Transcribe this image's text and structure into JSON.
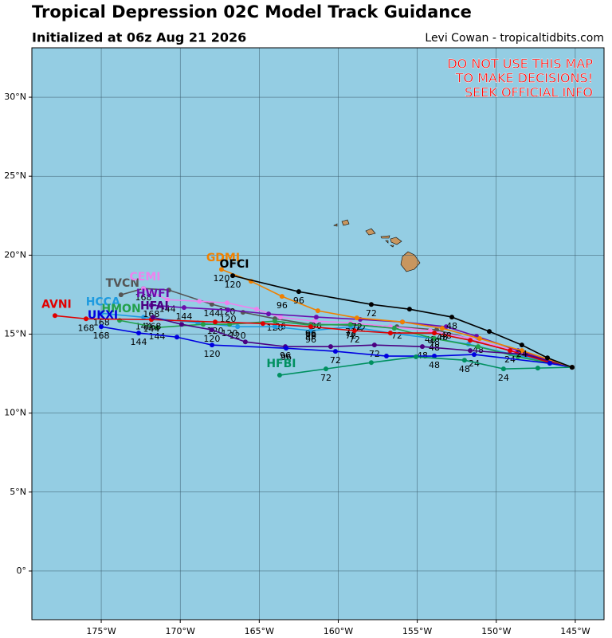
{
  "chart_data": {
    "type": "map",
    "title": "Tropical Depression 02C Model Track Guidance",
    "subtitle": "Initialized at 06z Aug 21 2026",
    "credit": "Levi Cowan - tropicaltidbits.com",
    "warning": [
      "DO NOT USE THIS MAP",
      "TO MAKE DECISIONS!",
      "SEEK OFFICIAL INFO"
    ],
    "ocean_color": "#94cde3",
    "land_color": "#c8965f",
    "grid": true,
    "xlim": [
      -179.39,
      -143.18
    ],
    "ylim": [
      -3.08,
      33.13
    ],
    "xticks": [
      {
        "value": -175,
        "label": "175°W"
      },
      {
        "value": -170,
        "label": "170°W"
      },
      {
        "value": -165,
        "label": "165°W"
      },
      {
        "value": -160,
        "label": "160°W"
      },
      {
        "value": -155,
        "label": "155°W"
      },
      {
        "value": -150,
        "label": "150°W"
      },
      {
        "value": -145,
        "label": "145°W"
      }
    ],
    "yticks": [
      {
        "value": 0,
        "label": "0°"
      },
      {
        "value": 5,
        "label": "5°N"
      },
      {
        "value": 10,
        "label": "10°N"
      },
      {
        "value": 15,
        "label": "15°N"
      },
      {
        "value": 20,
        "label": "20°N"
      },
      {
        "value": 25,
        "label": "25°N"
      },
      {
        "value": 30,
        "label": "30°N"
      }
    ],
    "series": [
      {
        "name": "TVCN",
        "color": "#555555",
        "lon": [
          -145.2,
          -148.38,
          -151.15,
          -153.77,
          -156.29,
          -159.22,
          -161.74,
          -164.01,
          -166.03,
          -168.0,
          -170.72,
          -172.33,
          -173.75
        ],
        "lat": [
          12.9,
          13.71,
          14.56,
          15.27,
          15.47,
          15.57,
          15.62,
          15.98,
          16.38,
          16.89,
          17.79,
          17.89,
          17.49
        ],
        "hours": [
          null,
          null,
          48,
          null,
          72,
          null,
          96,
          120,
          null,
          144,
          null,
          168,
          null
        ]
      },
      {
        "name": "CEMI",
        "color": "#ee82ee",
        "lon": [
          -145.2,
          -148.88,
          -151.65,
          -154.18,
          -156.7,
          -159.22,
          -161.49,
          -163.66,
          -165.17,
          -167.04,
          -168.79,
          -170.81,
          -172.33
        ],
        "lat": [
          12.9,
          13.96,
          14.72,
          15.22,
          15.47,
          15.72,
          15.82,
          16.07,
          16.58,
          16.98,
          17.08,
          17.18,
          17.89
        ],
        "hours": [
          null,
          null,
          null,
          48,
          null,
          72,
          null,
          96,
          null,
          120,
          null,
          144,
          null
        ]
      },
      {
        "name": "HCCA",
        "color": "#1e9be0",
        "lon": [
          -145.2,
          -149.13,
          -151.76,
          -153.92,
          -156.7,
          -159.2,
          -161.74,
          -164.01,
          -166.37,
          -168.89,
          -172.32,
          -174.99
        ],
        "lat": [
          12.9,
          13.76,
          14.36,
          14.72,
          15.07,
          15.47,
          15.22,
          15.47,
          15.47,
          15.72,
          16.07,
          16.32
        ],
        "hours": [
          null,
          null,
          null,
          48,
          null,
          72,
          96,
          null,
          120,
          null,
          144,
          168
        ]
      },
      {
        "name": "HWFI",
        "color": "#6a0dad",
        "lon": [
          -145.2,
          -148.63,
          -151.25,
          -153.17,
          -155.94,
          -158.61,
          -161.39,
          -164.41,
          -166.98,
          -169.76,
          -171.83
        ],
        "lat": [
          12.9,
          13.96,
          14.87,
          15.47,
          15.77,
          15.93,
          16.08,
          16.28,
          16.53,
          16.68,
          16.83
        ],
        "hours": [
          null,
          null,
          null,
          48,
          null,
          72,
          96,
          null,
          120,
          144,
          168
        ]
      },
      {
        "name": "HMON",
        "color": "#22a04a",
        "lon": [
          -145.2,
          -148.63,
          -151.15,
          -153.92,
          -156.45,
          -159.22,
          -161.74,
          -164.01,
          -166.88,
          -168.55,
          -171.47,
          -173.84
        ],
        "lat": [
          12.9,
          13.56,
          14.21,
          14.72,
          15.37,
          15.62,
          15.57,
          15.82,
          15.62,
          15.62,
          15.42,
          15.87
        ],
        "hours": [
          null,
          null,
          null,
          48,
          null,
          72,
          96,
          null,
          120,
          null,
          144,
          null
        ]
      },
      {
        "name": "AVNI",
        "color": "#e00000",
        "lon": [
          -145.2,
          -146.61,
          -149.13,
          -151.65,
          -153.92,
          -156.7,
          -158.97,
          -161.74,
          -164.77,
          -167.79,
          -171.83,
          -175.96,
          -177.93
        ],
        "lat": [
          12.9,
          13.2,
          13.96,
          14.61,
          15.07,
          15.07,
          15.22,
          15.47,
          15.67,
          15.77,
          15.92,
          15.97,
          16.17
        ],
        "hours": [
          null,
          null,
          24,
          null,
          48,
          null,
          72,
          96,
          null,
          120,
          144,
          168,
          null
        ]
      },
      {
        "name": "HFAI",
        "color": "#4b0082",
        "lon": [
          -145.2,
          -148.12,
          -151.65,
          -154.68,
          -157.71,
          -160.48,
          -163.35,
          -165.88,
          -168.0,
          -169.91,
          -171.73
        ],
        "lat": [
          12.9,
          13.71,
          13.96,
          14.21,
          14.31,
          14.21,
          14.21,
          14.51,
          15.27,
          15.62,
          16.07
        ],
        "hours": [
          null,
          null,
          null,
          48,
          72,
          null,
          96,
          null,
          120,
          null,
          168
        ]
      },
      {
        "name": "UKXI",
        "color": "#0000e0",
        "lon": [
          -145.2,
          -146.61,
          -151.4,
          -153.92,
          -156.95,
          -160.18,
          -163.3,
          -167.99,
          -170.21,
          -172.63,
          -175.0
        ],
        "lat": [
          12.9,
          13.15,
          13.71,
          13.61,
          13.61,
          13.91,
          14.11,
          14.31,
          14.81,
          15.07,
          15.47
        ],
        "hours": [
          null,
          null,
          24,
          48,
          null,
          72,
          96,
          120,
          null,
          144,
          168
        ]
      },
      {
        "name": "HFBI",
        "color": "#009060",
        "lon": [
          -145.2,
          -147.37,
          -149.54,
          -152.01,
          -155.08,
          -157.91,
          -160.78,
          -163.71
        ],
        "lat": [
          12.9,
          12.85,
          12.8,
          13.35,
          13.56,
          13.2,
          12.8,
          12.4
        ],
        "hours": [
          null,
          null,
          24,
          48,
          null,
          null,
          72,
          null
        ]
      },
      {
        "name": "GDMI",
        "color": "#f08000",
        "lon": [
          -145.2,
          -148.38,
          -151.05,
          -153.42,
          -155.94,
          -158.82,
          -161.29,
          -163.56,
          -165.52,
          -167.39
        ],
        "lat": [
          12.9,
          13.96,
          14.72,
          15.37,
          15.77,
          16.03,
          16.48,
          17.39,
          18.35,
          19.1
        ],
        "hours": [
          null,
          null,
          null,
          48,
          null,
          72,
          null,
          96,
          null,
          120
        ]
      },
      {
        "name": "OFCI",
        "color": "#000000",
        "lon": [
          -145.2,
          -146.76,
          -148.38,
          -150.44,
          -152.81,
          -155.49,
          -157.91,
          -162.5,
          -166.68
        ],
        "lat": [
          12.9,
          13.5,
          14.31,
          15.17,
          16.08,
          16.58,
          16.88,
          17.69,
          18.7
        ],
        "hours": [
          null,
          null,
          24,
          null,
          48,
          null,
          72,
          96,
          120
        ]
      }
    ]
  }
}
